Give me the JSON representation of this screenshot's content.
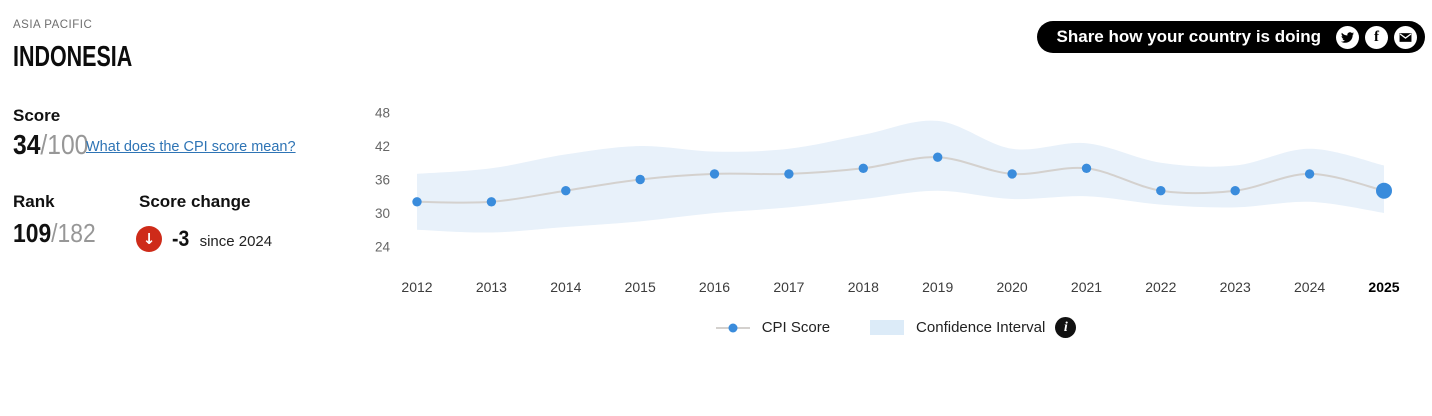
{
  "header": {
    "region": "ASIA PACIFIC",
    "country": "INDONESIA"
  },
  "score_panel": {
    "score_label": "Score",
    "score_value": "34",
    "score_denominator": "/100",
    "score_link": "What does the CPI score mean?",
    "rank_label": "Rank",
    "rank_value": "109",
    "rank_denominator": "/182",
    "change_label": "Score change",
    "change_direction": "down",
    "change_arrow": "↓",
    "change_value": "-3",
    "change_caption": "since 2024"
  },
  "share": {
    "label": "Share how your country is doing",
    "icons": [
      "twitter-icon",
      "facebook-icon",
      "email-icon"
    ],
    "facebook_glyph": "f"
  },
  "legend": {
    "cpi_label": "CPI Score",
    "ci_label": "Confidence Interval",
    "info_glyph": "i"
  },
  "colors": {
    "cpi_blue": "#3a8cdc",
    "ci_band_blue": "#e8f1fa",
    "trend_line_gray": "#d4d1ce",
    "tick_gray": "#666666",
    "year_label": "#3c3c3c",
    "year_label_current": "#000000",
    "negative_red": "#ce2b19",
    "share_pill_black": "#000000",
    "link_blue": "#2e74b5"
  },
  "chart_data": {
    "type": "line",
    "title": "",
    "xlabel": "",
    "ylabel": "",
    "x": [
      2012,
      2013,
      2014,
      2015,
      2016,
      2017,
      2018,
      2019,
      2020,
      2021,
      2022,
      2023,
      2024,
      2025
    ],
    "series": [
      {
        "name": "CPI Score",
        "values": [
          32,
          32,
          34,
          36,
          37,
          37,
          38,
          40,
          37,
          38,
          34,
          34,
          37,
          34
        ]
      },
      {
        "name": "Confidence Interval",
        "ci_upper": [
          37,
          38,
          40.5,
          42,
          41,
          41.5,
          44,
          46.5,
          41.5,
          42.5,
          39,
          38.5,
          41.5,
          38.5
        ],
        "ci_lower": [
          27,
          26.5,
          27.5,
          28.5,
          30,
          31,
          32.5,
          34,
          32.5,
          33,
          31.5,
          31,
          32,
          30
        ]
      }
    ],
    "yticks": [
      48,
      42,
      36,
      30,
      24
    ],
    "ylim": [
      24,
      48
    ],
    "grid": false,
    "legend_position": "bottom",
    "highlight_last_point": true
  }
}
